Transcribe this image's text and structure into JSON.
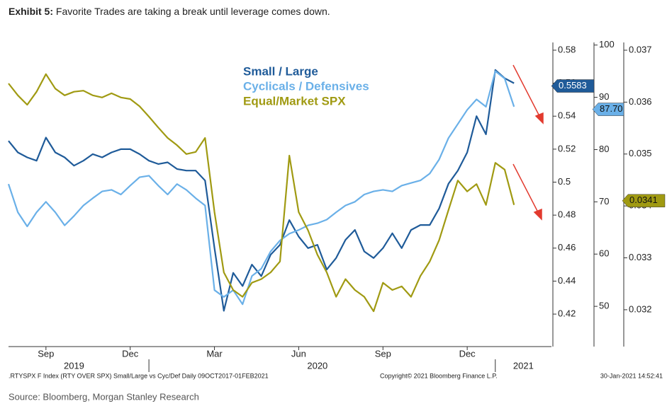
{
  "chart_data": {
    "type": "line",
    "title_prefix": "Exhibit 5:",
    "title": "Favorite Trades are taking a break until leverage comes down.",
    "categories": [
      null,
      null,
      null,
      null,
      "Sep",
      null,
      null,
      null,
      null,
      null,
      null,
      null,
      null,
      "Dec",
      null,
      null,
      null,
      null,
      null,
      null,
      null,
      null,
      "Mar",
      null,
      null,
      null,
      null,
      null,
      null,
      null,
      null,
      "Jun",
      null,
      null,
      null,
      null,
      null,
      null,
      null,
      null,
      "Sep",
      null,
      null,
      null,
      null,
      null,
      null,
      null,
      null,
      "Dec",
      null,
      null,
      null,
      null,
      null,
      null,
      null,
      null,
      null
    ],
    "x_groups": [
      {
        "label": "2019",
        "from": 0,
        "to": 14
      },
      {
        "label": "2020",
        "from": 15,
        "to": 51
      },
      {
        "label": "2021",
        "from": 52,
        "to": 58
      }
    ],
    "ylim": [
      0.4003,
      0.5847
    ],
    "yticks": [
      0.42,
      0.44,
      0.46,
      0.48,
      0.5,
      0.52,
      0.54,
      0.56,
      0.58
    ],
    "y2lim": [
      42.3,
      100.5
    ],
    "y2ticks": [
      50,
      60,
      70,
      80,
      90,
      100
    ],
    "y3lim": [
      0.03129,
      0.03715
    ],
    "y3ticks": [
      0.032,
      0.033,
      0.034,
      0.035,
      0.036,
      0.037
    ],
    "series": [
      {
        "name": "Small / Large",
        "color": "#1f5b99",
        "axis": "y",
        "marker": 0.5583,
        "values": [
          0.525,
          0.518,
          0.515,
          0.513,
          0.527,
          0.518,
          0.515,
          0.51,
          0.513,
          0.517,
          0.515,
          0.518,
          0.52,
          0.52,
          0.517,
          0.513,
          0.511,
          0.512,
          0.508,
          0.507,
          0.507,
          0.501,
          0.46,
          0.422,
          0.445,
          0.437,
          0.45,
          0.443,
          0.456,
          0.462,
          0.477,
          0.467,
          0.46,
          0.462,
          0.447,
          0.454,
          0.465,
          0.471,
          0.458,
          0.454,
          0.46,
          0.469,
          0.46,
          0.471,
          0.474,
          0.474,
          0.484,
          0.499,
          0.507,
          0.518,
          0.54,
          0.529,
          0.568,
          0.563,
          0.56,
          null,
          null,
          null,
          null
        ]
      },
      {
        "name": "Cyclicals / Defensives",
        "color": "#6ab0e8",
        "axis": "y2",
        "marker": {
          "value": 87.7,
          "label": "87.70"
        },
        "values": [
          73.4,
          68.0,
          65.3,
          68.0,
          70.0,
          68.0,
          65.5,
          67.3,
          69.3,
          70.7,
          72.0,
          72.3,
          71.4,
          73.1,
          74.7,
          75.0,
          73.1,
          71.4,
          73.4,
          72.3,
          70.7,
          69.3,
          53.1,
          51.8,
          53.1,
          50.4,
          55.8,
          57.2,
          60.5,
          62.6,
          63.9,
          64.6,
          65.5,
          65.9,
          66.6,
          68.0,
          69.3,
          70.0,
          71.4,
          72.0,
          72.3,
          72.0,
          73.1,
          73.6,
          74.1,
          75.4,
          78.1,
          82.2,
          84.9,
          87.6,
          89.6,
          88.2,
          95.0,
          93.6,
          88.2,
          null,
          null,
          null,
          null
        ]
      },
      {
        "name": "Equal/Market SPX",
        "color": "#a09a12",
        "axis": "y3",
        "marker": 0.0341,
        "values": [
          0.03636,
          0.03613,
          0.03595,
          0.0362,
          0.03654,
          0.03626,
          0.03613,
          0.0362,
          0.03622,
          0.03613,
          0.03609,
          0.03617,
          0.03609,
          0.03606,
          0.03592,
          0.03572,
          0.03551,
          0.03531,
          0.03517,
          0.035,
          0.03504,
          0.03531,
          0.03388,
          0.03272,
          0.03238,
          0.03225,
          0.03252,
          0.03259,
          0.03272,
          0.03293,
          0.03497,
          0.03388,
          0.03353,
          0.03306,
          0.03272,
          0.03225,
          0.03259,
          0.03238,
          0.03225,
          0.03197,
          0.03252,
          0.03238,
          0.03245,
          0.03225,
          0.03265,
          0.03293,
          0.03334,
          0.03392,
          0.03449,
          0.03428,
          0.03442,
          0.03402,
          0.03483,
          0.0347,
          0.03402,
          null,
          null,
          null,
          null
        ]
      }
    ],
    "footer_left": ".RTYSPX F Index (RTY OVER SPX) Small/Large vs Cyc/Def  Daily 09OCT2017-01FEB2021",
    "footer_mid": "Copyright© 2021 Bloomberg Finance L.P.",
    "footer_right": "30-Jan-2021 14:52:41",
    "source": "Source: Bloomberg, Morgan Stanley Research"
  }
}
